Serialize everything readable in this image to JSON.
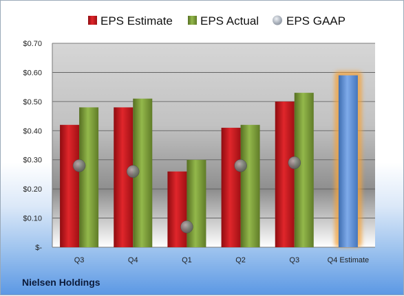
{
  "company": "Nielsen Holdings",
  "chart_data": {
    "type": "bar",
    "categories": [
      "Q3",
      "Q4",
      "Q1",
      "Q2",
      "Q3",
      "Q4 Estimate"
    ],
    "series": [
      {
        "name": "EPS Estimate",
        "values": [
          0.42,
          0.48,
          0.26,
          0.41,
          0.5,
          null
        ]
      },
      {
        "name": "EPS Actual",
        "values": [
          0.48,
          0.51,
          0.3,
          0.42,
          0.53,
          null
        ]
      },
      {
        "name": "EPS GAAP",
        "values": [
          0.28,
          0.26,
          0.07,
          0.28,
          0.29,
          null
        ]
      },
      {
        "name": "Q4 Estimate",
        "values": [
          null,
          null,
          null,
          null,
          null,
          0.59
        ]
      }
    ],
    "y_tick_labels": [
      "$-",
      "$0.10",
      "$0.20",
      "$0.30",
      "$0.40",
      "$0.50",
      "$0.60",
      "$0.70"
    ],
    "ylim": [
      0,
      0.7
    ],
    "legend": {
      "placement": "top",
      "entries": [
        "EPS Estimate",
        "EPS Actual",
        "EPS GAAP"
      ]
    },
    "colors": {
      "estimate": "#c8181d",
      "actual": "#7ea23a",
      "gaap": "#a7aeb8",
      "forecast": "#5b8fd4",
      "forecast_glow": "#f4a33a"
    },
    "grid": true
  }
}
